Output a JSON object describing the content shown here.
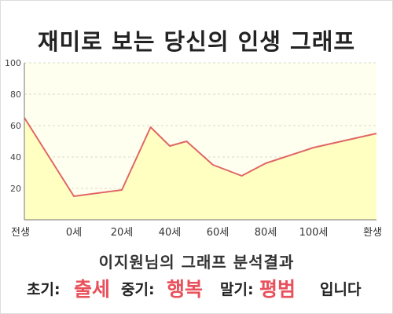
{
  "title": "재미로 보는 당신의 인생 그래프",
  "subtitle": "이지원님의 그래프 분석결과",
  "result": {
    "early_label": "초기:",
    "early_value": "출세",
    "mid_label": "중기:",
    "mid_value": "행복",
    "late_label": "말기:",
    "late_value": "평범",
    "ending": "입니다"
  },
  "colors": {
    "line": "#e06666",
    "fill": "#ffffc2",
    "plot_background": "#fffff0",
    "accent_text": "#e8505b"
  },
  "chart_data": {
    "type": "area",
    "x_tick_labels": [
      "전생",
      "0세",
      "20세",
      "40세",
      "60세",
      "80세",
      "100세",
      "환생"
    ],
    "y_ticks": [
      20,
      40,
      60,
      80,
      100
    ],
    "ylim": [
      0,
      100
    ],
    "grid": "horizontal dashed",
    "series": [
      {
        "points": [
          {
            "x": "전생",
            "y": 65
          },
          {
            "x": "0세",
            "y": 15
          },
          {
            "x": "20세",
            "y": 19
          },
          {
            "x": "32세",
            "y": 59
          },
          {
            "x": "40세",
            "y": 47
          },
          {
            "x": "47세",
            "y": 50
          },
          {
            "x": "58세",
            "y": 35
          },
          {
            "x": "70세",
            "y": 28
          },
          {
            "x": "80세",
            "y": 36
          },
          {
            "x": "100세",
            "y": 46
          },
          {
            "x": "환생",
            "y": 55
          }
        ]
      }
    ]
  }
}
